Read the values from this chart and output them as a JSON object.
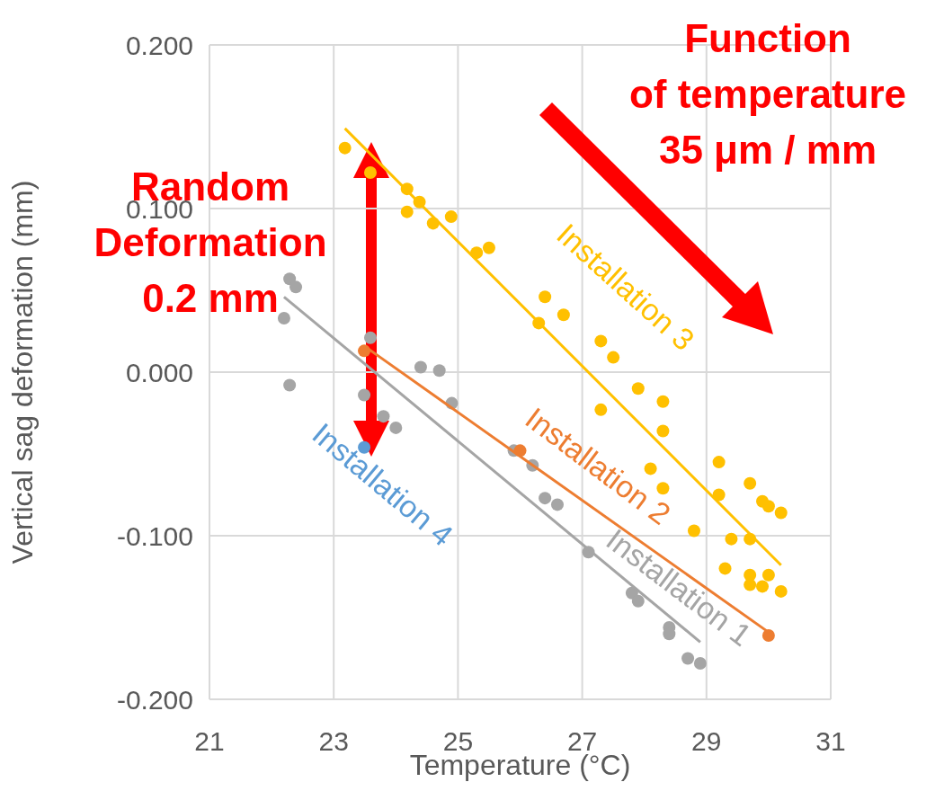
{
  "chart_data": {
    "type": "scatter",
    "xlabel": "Temperature (°C)",
    "ylabel": "Vertical sag deformation (mm)",
    "xlim": [
      21,
      31
    ],
    "xticks": [
      21,
      23,
      25,
      27,
      29,
      31
    ],
    "ylim": [
      -0.2,
      0.2
    ],
    "yticks": [
      {
        "value": -0.2,
        "label": "-0.200"
      },
      {
        "value": -0.1,
        "label": "-0.100"
      },
      {
        "value": 0,
        "label": "0.000"
      },
      {
        "value": 0.1,
        "label": "0.100"
      },
      {
        "value": 0.2,
        "label": "0.200"
      }
    ],
    "grid": true,
    "legend": false,
    "marker": "circle",
    "annotations": [
      "Random Deformation 0.2 mm",
      "Function of temperature 35 μm / mm"
    ],
    "series": [
      {
        "type": "scatter",
        "name": "Installation 1",
        "color": "#a5a5a5",
        "x": [
          22.29,
          22.39,
          22.2,
          22.29,
          23.59,
          23.49,
          23.8,
          24.0,
          24.4,
          24.7,
          24.9,
          25.9,
          26.2,
          26.4,
          26.6,
          27.1,
          27.8,
          27.9,
          28.4,
          28.4,
          28.7,
          28.9
        ],
        "values": [
          0.057,
          0.052,
          0.033,
          -0.008,
          0.021,
          -0.014,
          -0.027,
          -0.034,
          0.003,
          0.001,
          -0.019,
          -0.048,
          -0.057,
          -0.077,
          -0.081,
          -0.11,
          -0.135,
          -0.14,
          -0.156,
          -0.16,
          -0.175,
          -0.178
        ]
      },
      {
        "type": "scatter",
        "name": "Installation 2",
        "color": "#ed7d31",
        "x": [
          23.49,
          26.0,
          30.0
        ],
        "values": [
          0.013,
          -0.048,
          -0.161
        ]
      },
      {
        "type": "scatter",
        "name": "Installation 3",
        "color": "#ffc000",
        "x": [
          23.18,
          23.59,
          24.18,
          24.18,
          24.38,
          24.6,
          24.89,
          25.3,
          25.5,
          26.3,
          26.4,
          26.7,
          27.3,
          27.5,
          27.3,
          27.9,
          28.3,
          28.3,
          28.1,
          28.3,
          28.8,
          29.2,
          29.2,
          29.7,
          29.9,
          30.0,
          30.2,
          29.4,
          29.7,
          29.3,
          29.7,
          30.0,
          29.9,
          29.7,
          30.2
        ],
        "values": [
          0.137,
          0.122,
          0.112,
          0.098,
          0.104,
          0.091,
          0.095,
          0.073,
          0.076,
          0.03,
          0.046,
          0.035,
          0.019,
          0.009,
          -0.023,
          -0.01,
          -0.018,
          -0.036,
          -0.059,
          -0.071,
          -0.097,
          -0.055,
          -0.075,
          -0.068,
          -0.079,
          -0.082,
          -0.086,
          -0.102,
          -0.102,
          -0.12,
          -0.124,
          -0.124,
          -0.131,
          -0.13,
          -0.134
        ]
      },
      {
        "type": "scatter",
        "name": "Installation 4",
        "color": "#5b9bd5",
        "x": [
          23.49
        ],
        "values": [
          -0.046
        ]
      },
      {
        "type": "line",
        "marker": "none",
        "color": "#a5a5a5",
        "x": [
          22.2,
          28.9
        ],
        "values": [
          0.046,
          -0.165
        ]
      },
      {
        "type": "line",
        "marker": "none",
        "color": "#ed7d31",
        "x": [
          23.49,
          30.0
        ],
        "values": [
          0.016,
          -0.159
        ]
      },
      {
        "type": "line",
        "marker": "none",
        "color": "#ffc000",
        "x": [
          23.18,
          30.2
        ],
        "values": [
          0.149,
          -0.118
        ]
      }
    ]
  }
}
